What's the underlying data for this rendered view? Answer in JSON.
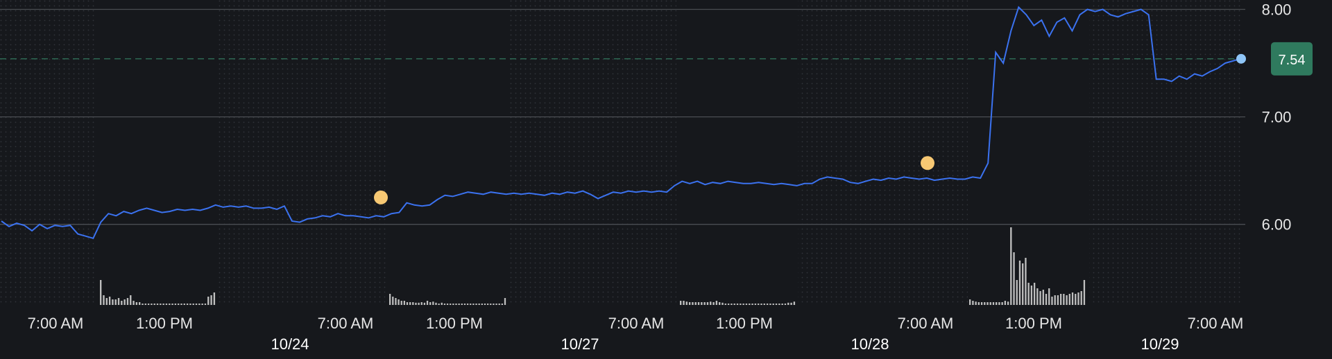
{
  "chart_data": {
    "type": "line",
    "ylim": [
      5.25,
      8.1
    ],
    "grid": true,
    "y_ticks": [
      {
        "value": 8.0,
        "label": "8.00"
      },
      {
        "value": 7.0,
        "label": "7.00"
      },
      {
        "value": 6.0,
        "label": "6.00"
      }
    ],
    "time_labels": [
      "7:00 AM",
      "1:00 PM",
      "7:00 AM",
      "1:00 PM",
      "7:00 AM",
      "1:00 PM",
      "7:00 AM",
      "1:00 PM",
      "7:00 AM"
    ],
    "date_labels": [
      "10/24",
      "10/27",
      "10/28",
      "10/29"
    ],
    "current_price": {
      "value": 7.54,
      "label": "7.54"
    },
    "series": [
      {
        "values": [
          6.03,
          5.98,
          6.01,
          5.99,
          5.94,
          6.0,
          5.96,
          5.99,
          5.98,
          5.99,
          5.91,
          5.89,
          5.87,
          6.02,
          6.1,
          6.08,
          6.12,
          6.1,
          6.13,
          6.15,
          6.13,
          6.11,
          6.12,
          6.14,
          6.13,
          6.14,
          6.13,
          6.15,
          6.18,
          6.16,
          6.17,
          6.16,
          6.17,
          6.15,
          6.15,
          6.16,
          6.14,
          6.17,
          6.03,
          6.02,
          6.05,
          6.06,
          6.08,
          6.07,
          6.1,
          6.08,
          6.08,
          6.07,
          6.06,
          6.08,
          6.07,
          6.1,
          6.11,
          6.2,
          6.18,
          6.17,
          6.18,
          6.23,
          6.27,
          6.26,
          6.28,
          6.3,
          6.29,
          6.28,
          6.3,
          6.29,
          6.28,
          6.29,
          6.28,
          6.29,
          6.28,
          6.27,
          6.29,
          6.28,
          6.3,
          6.29,
          6.31,
          6.28,
          6.24,
          6.27,
          6.3,
          6.29,
          6.31,
          6.3,
          6.31,
          6.3,
          6.31,
          6.3,
          6.36,
          6.4,
          6.38,
          6.4,
          6.37,
          6.39,
          6.38,
          6.4,
          6.39,
          6.38,
          6.38,
          6.39,
          6.38,
          6.37,
          6.38,
          6.37,
          6.36,
          6.38,
          6.38,
          6.42,
          6.44,
          6.43,
          6.42,
          6.39,
          6.38,
          6.4,
          6.42,
          6.41,
          6.43,
          6.42,
          6.44,
          6.43,
          6.42,
          6.43,
          6.41,
          6.42,
          6.43,
          6.42,
          6.42,
          6.44,
          6.43,
          6.57,
          7.6,
          7.5,
          7.8,
          8.02,
          7.95,
          7.85,
          7.9,
          7.75,
          7.88,
          7.92,
          7.8,
          7.95,
          8.0,
          7.98,
          8.0,
          7.95,
          7.93,
          7.96,
          7.98,
          8.0,
          7.95,
          7.35,
          7.35,
          7.33,
          7.38,
          7.35,
          7.4,
          7.38,
          7.42,
          7.45,
          7.5,
          7.52,
          7.54
        ]
      }
    ],
    "volume_segments": [
      {
        "heights": [
          0.9,
          0.35,
          0.25,
          0.3,
          0.2,
          0.2,
          0.25,
          0.15,
          0.2,
          0.25,
          0.35,
          0.15,
          0.1,
          0.1,
          0.05,
          0.05,
          0.05,
          0.05,
          0.05,
          0.05,
          0.05,
          0.05,
          0.05,
          0.05,
          0.05,
          0.05,
          0.05,
          0.05,
          0.05,
          0.05,
          0.05,
          0.05,
          0.05,
          0.05,
          0.05,
          0.05,
          0.3,
          0.35,
          0.45
        ]
      },
      {
        "heights": [
          0.4,
          0.3,
          0.25,
          0.2,
          0.15,
          0.15,
          0.1,
          0.1,
          0.1,
          0.08,
          0.08,
          0.1,
          0.08,
          0.15,
          0.1,
          0.12,
          0.08,
          0.05,
          0.08,
          0.05,
          0.05,
          0.05,
          0.05,
          0.05,
          0.05,
          0.05,
          0.05,
          0.05,
          0.05,
          0.05,
          0.05,
          0.05,
          0.05,
          0.05,
          0.05,
          0.05,
          0.05,
          0.05,
          0.05,
          0.05,
          0.25
        ]
      },
      {
        "heights": [
          0.15,
          0.15,
          0.12,
          0.1,
          0.1,
          0.1,
          0.1,
          0.1,
          0.1,
          0.1,
          0.12,
          0.1,
          0.15,
          0.1,
          0.08,
          0.05,
          0.05,
          0.05,
          0.05,
          0.05,
          0.05,
          0.05,
          0.05,
          0.05,
          0.05,
          0.05,
          0.05,
          0.05,
          0.05,
          0.05,
          0.05,
          0.05,
          0.05,
          0.05,
          0.05,
          0.05,
          0.08,
          0.08,
          0.12
        ]
      },
      {
        "heights": [
          0.2,
          0.15,
          0.12,
          0.1,
          0.1,
          0.1,
          0.1,
          0.1,
          0.1,
          0.1,
          0.1,
          0.1,
          0.15,
          0.12,
          2.8,
          1.9,
          0.9,
          1.6,
          1.5,
          1.7,
          0.8,
          0.7,
          0.8,
          0.6,
          0.5,
          0.55,
          0.4,
          0.6,
          0.3,
          0.35,
          0.35,
          0.4,
          0.4,
          0.35,
          0.4,
          0.45,
          0.4,
          0.45,
          0.5,
          0.9
        ]
      }
    ],
    "event_markers": [
      {
        "value": 6.25
      },
      {
        "value": 6.57
      }
    ],
    "colors": {
      "background": "#16181c",
      "line": "#3b72f0",
      "price_tag": "#2f7a5e",
      "current_dot": "#8fc5f7",
      "event_marker": "#f7c873",
      "grid": "#4a4d52",
      "volume": "#bfbfbf",
      "dotted_session": "#2a2d33"
    }
  }
}
